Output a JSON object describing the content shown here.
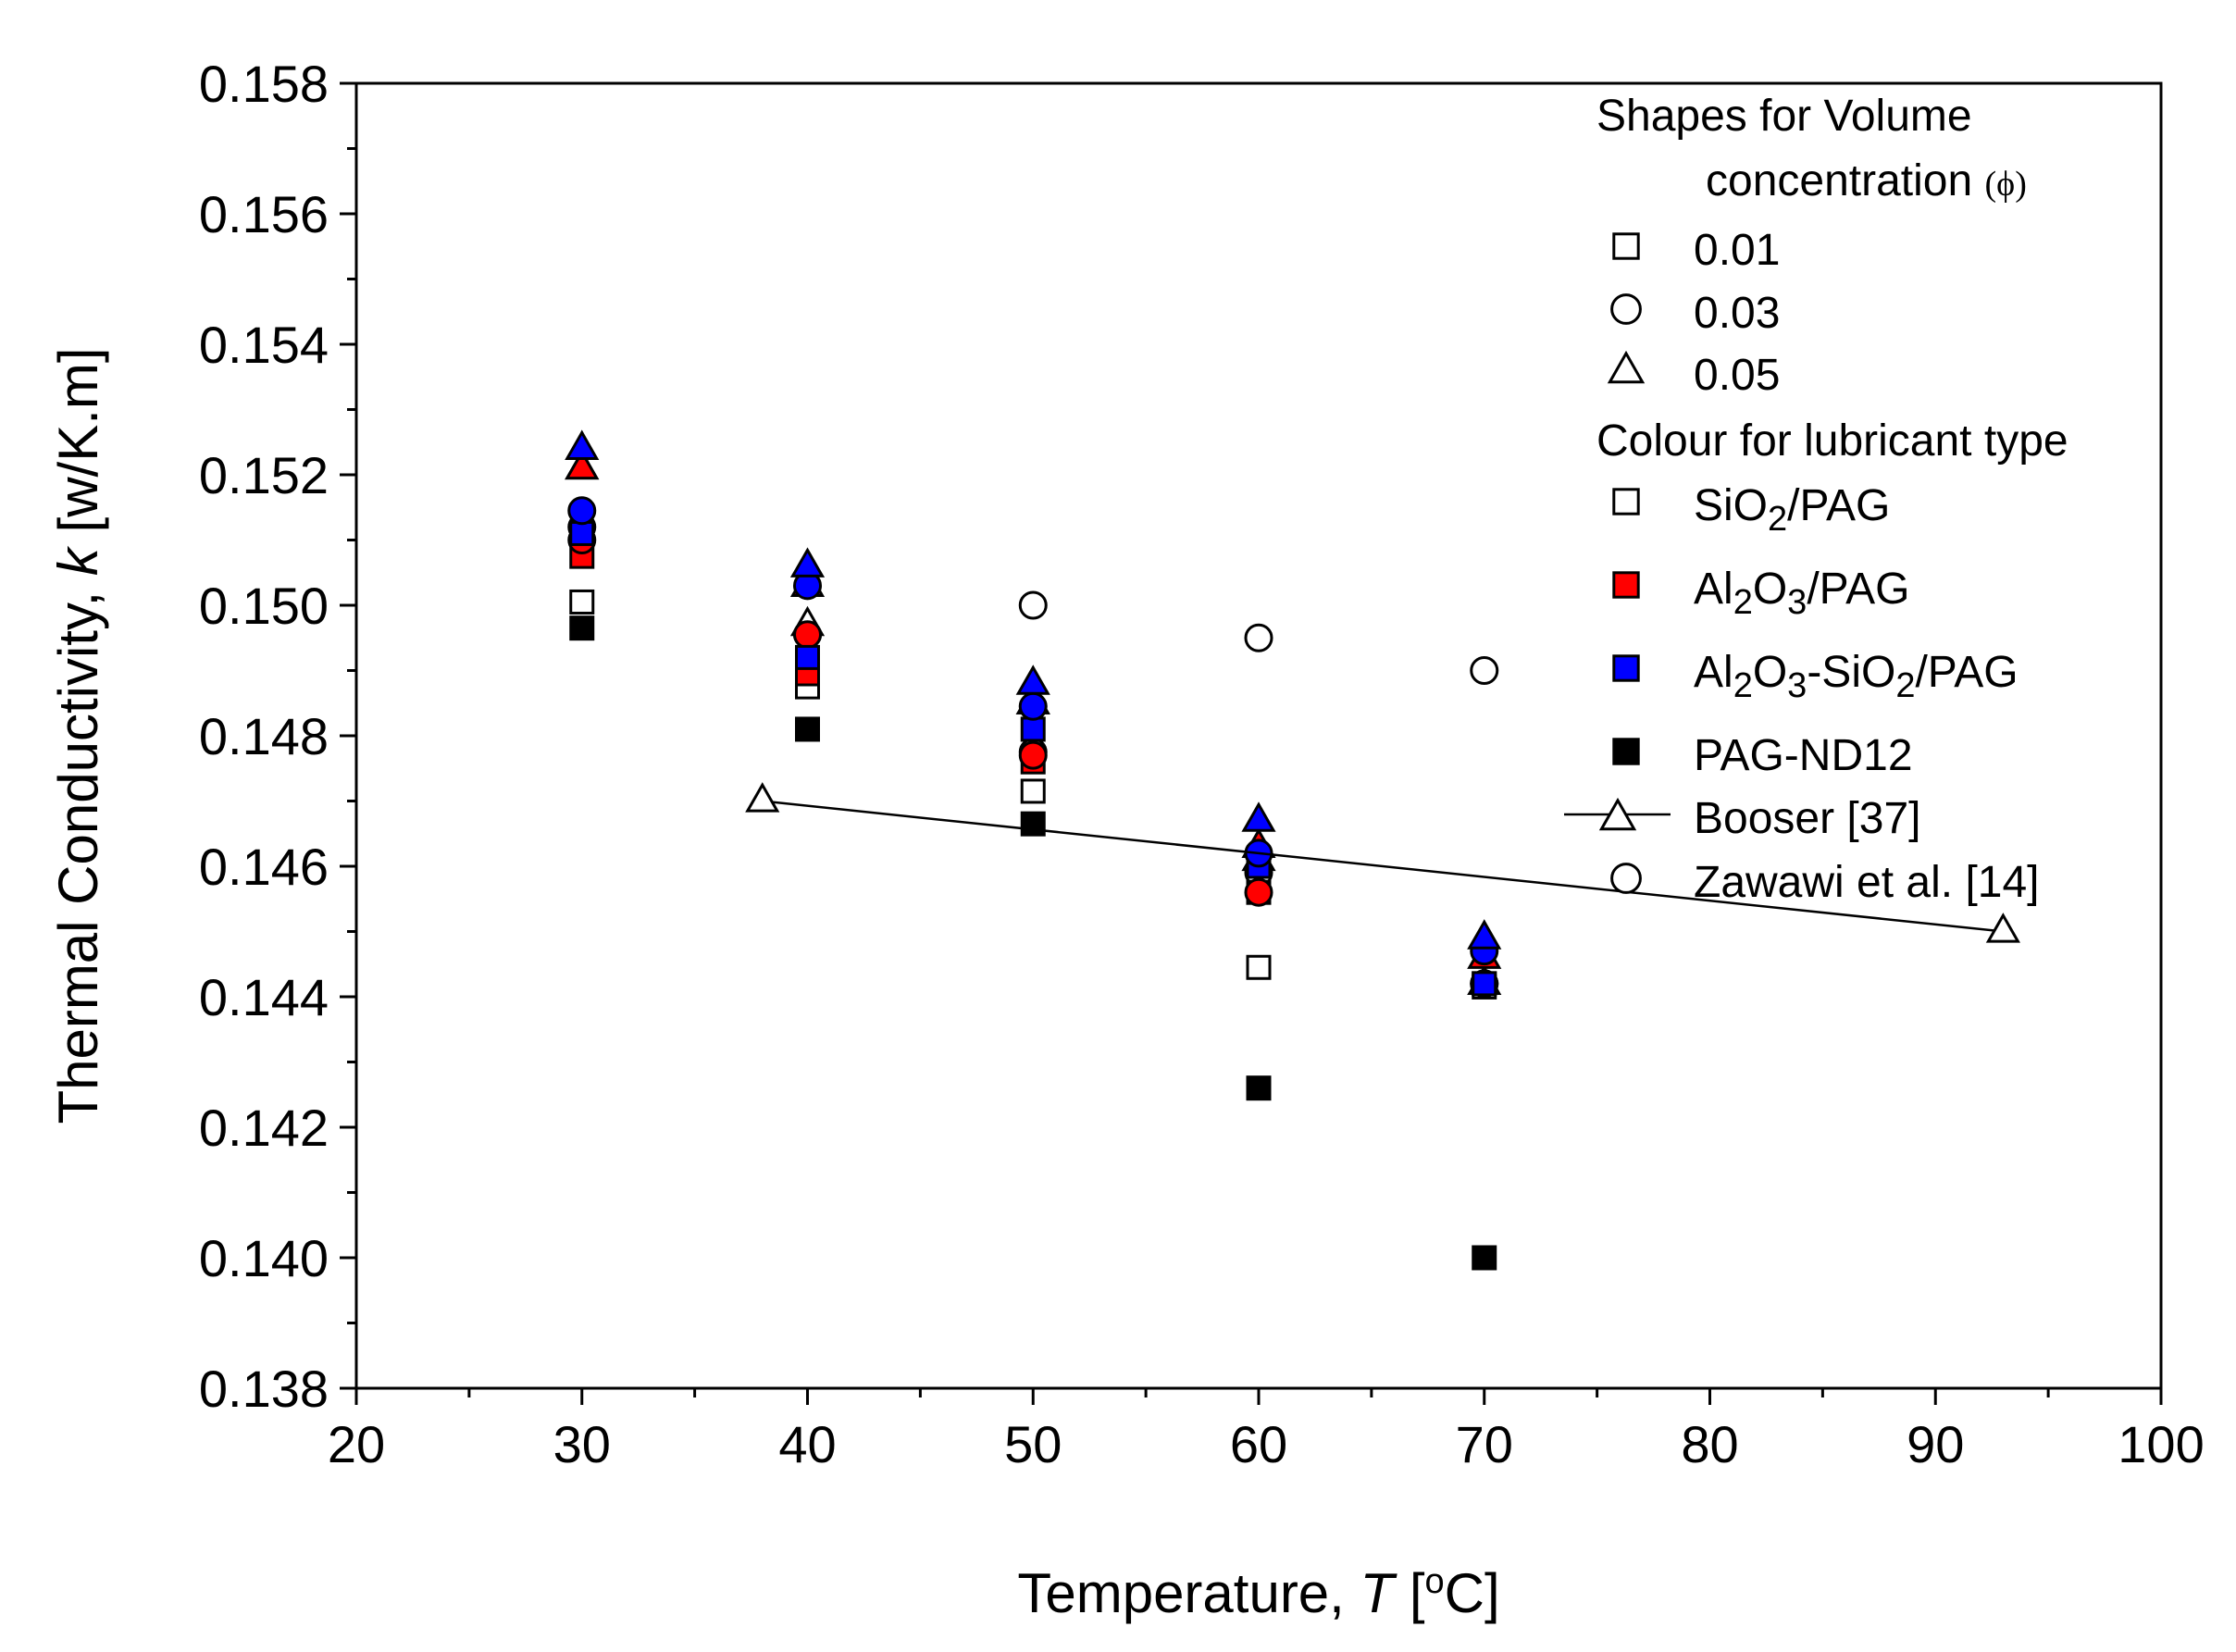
{
  "chart_data": {
    "type": "scatter",
    "title": "",
    "xlabel": {
      "prefix": "Temperature, ",
      "symbol": "T",
      "unit_open": " [",
      "unit_sup": "o",
      "unit_close": "C]"
    },
    "ylabel": {
      "prefix": "Thermal Conductivity, ",
      "symbol": "k",
      "unit": " [w/K.m]"
    },
    "xlim": [
      20,
      100
    ],
    "ylim": [
      0.138,
      0.158
    ],
    "x_ticks": [
      "20",
      "30",
      "40",
      "50",
      "60",
      "70",
      "80",
      "90",
      "100"
    ],
    "y_ticks": [
      "0.138",
      "0.140",
      "0.142",
      "0.144",
      "0.146",
      "0.148",
      "0.150",
      "0.152",
      "0.154",
      "0.156",
      "0.158"
    ],
    "colors": {
      "SiO2/PAG": "#ffffff",
      "Al2O3/PAG": "#ff0000",
      "Al2O3-SiO2/PAG": "#0000ff",
      "PAG-ND12": "#000000"
    },
    "series": [
      {
        "name": "SiO2/PAG 0.01",
        "lubricant": "SiO2/PAG",
        "shape": "square",
        "x": [
          30,
          40,
          50,
          60,
          70
        ],
        "y": [
          0.15005,
          0.14875,
          0.14715,
          0.14445,
          0.14415
        ]
      },
      {
        "name": "SiO2/PAG 0.03",
        "lubricant": "SiO2/PAG",
        "shape": "circle",
        "x": [
          30,
          40,
          50,
          60,
          70
        ],
        "y": [
          0.1512,
          0.14955,
          0.14775,
          0.1459,
          0.1442
        ]
      },
      {
        "name": "SiO2/PAG 0.05",
        "lubricant": "SiO2/PAG",
        "shape": "triangle",
        "x": [
          30,
          40,
          50,
          60,
          70
        ],
        "y": [
          0.1521,
          0.1497,
          0.1485,
          0.1461,
          0.1442
        ]
      },
      {
        "name": "Al2O3/PAG 0.01",
        "lubricant": "Al2O3/PAG",
        "shape": "square",
        "x": [
          30,
          40,
          50,
          60,
          70
        ],
        "y": [
          0.15075,
          0.14895,
          0.1476,
          0.1456,
          0.1442
        ]
      },
      {
        "name": "Al2O3/PAG 0.03",
        "lubricant": "Al2O3/PAG",
        "shape": "circle",
        "x": [
          30,
          40,
          50,
          60,
          70
        ],
        "y": [
          0.151,
          0.14955,
          0.1477,
          0.1456,
          0.1442
        ]
      },
      {
        "name": "Al2O3/PAG 0.05",
        "lubricant": "Al2O3/PAG",
        "shape": "triangle",
        "x": [
          30,
          40,
          50,
          60,
          70
        ],
        "y": [
          0.1521,
          0.1503,
          0.1485,
          0.1463,
          0.1446
        ]
      },
      {
        "name": "Al2O3-SiO2/PAG 0.01",
        "lubricant": "Al2O3-SiO2/PAG",
        "shape": "square",
        "x": [
          30,
          40,
          50,
          60,
          70
        ],
        "y": [
          0.1511,
          0.1492,
          0.1481,
          0.146,
          0.1442
        ]
      },
      {
        "name": "Al2O3-SiO2/PAG 0.03",
        "lubricant": "Al2O3-SiO2/PAG",
        "shape": "circle",
        "x": [
          30,
          40,
          50,
          60,
          70
        ],
        "y": [
          0.15145,
          0.1503,
          0.14845,
          0.1462,
          0.1447
        ]
      },
      {
        "name": "Al2O3-SiO2/PAG 0.05",
        "lubricant": "Al2O3-SiO2/PAG",
        "shape": "triangle",
        "x": [
          30,
          40,
          50,
          60,
          70
        ],
        "y": [
          0.1524,
          0.1506,
          0.1488,
          0.1467,
          0.1449
        ]
      },
      {
        "name": "PAG-ND12",
        "lubricant": "PAG-ND12",
        "shape": "square",
        "x": [
          30,
          40,
          50,
          60,
          70
        ],
        "y": [
          0.14965,
          0.1481,
          0.14665,
          0.1426,
          0.14
        ]
      },
      {
        "name": "Booser [37]",
        "shape": "triangle-line",
        "x": [
          38,
          93
        ],
        "y": [
          0.147,
          0.145
        ]
      },
      {
        "name": "Zawawi et al. [14]",
        "shape": "circle-open",
        "x": [
          50,
          60,
          70
        ],
        "y": [
          0.15,
          0.1495,
          0.149
        ]
      }
    ],
    "legend": {
      "placement": "top-right",
      "shape_header_line1": "Shapes for Volume",
      "shape_header_line2": "concentration",
      "shape_header_symbol": "(ϕ)",
      "shapes": [
        {
          "shape": "square",
          "label": "0.01"
        },
        {
          "shape": "circle",
          "label": "0.03"
        },
        {
          "shape": "triangle",
          "label": "0.05"
        }
      ],
      "colour_header": "Colour for lubricant type",
      "lubricants": [
        {
          "key": "SiO2/PAG",
          "parts": [
            {
              "t": "SiO"
            },
            {
              "t": "2",
              "sub": true
            },
            {
              "t": "/PAG"
            }
          ]
        },
        {
          "key": "Al2O3/PAG",
          "parts": [
            {
              "t": "Al"
            },
            {
              "t": "2",
              "sub": true
            },
            {
              "t": "O"
            },
            {
              "t": "3",
              "sub": true
            },
            {
              "t": "/PAG"
            }
          ]
        },
        {
          "key": "Al2O3-SiO2/PAG",
          "parts": [
            {
              "t": "Al"
            },
            {
              "t": "2",
              "sub": true
            },
            {
              "t": "O"
            },
            {
              "t": "3",
              "sub": true
            },
            {
              "t": "-SiO"
            },
            {
              "t": "2",
              "sub": true
            },
            {
              "t": "/PAG"
            }
          ]
        },
        {
          "key": "PAG-ND12",
          "parts": [
            {
              "t": "PAG-ND12"
            }
          ]
        }
      ],
      "references": [
        {
          "shape": "triangle-line",
          "label": "Booser [37]"
        },
        {
          "shape": "circle-open",
          "label": "Zawawi et al. [14]"
        }
      ]
    }
  }
}
